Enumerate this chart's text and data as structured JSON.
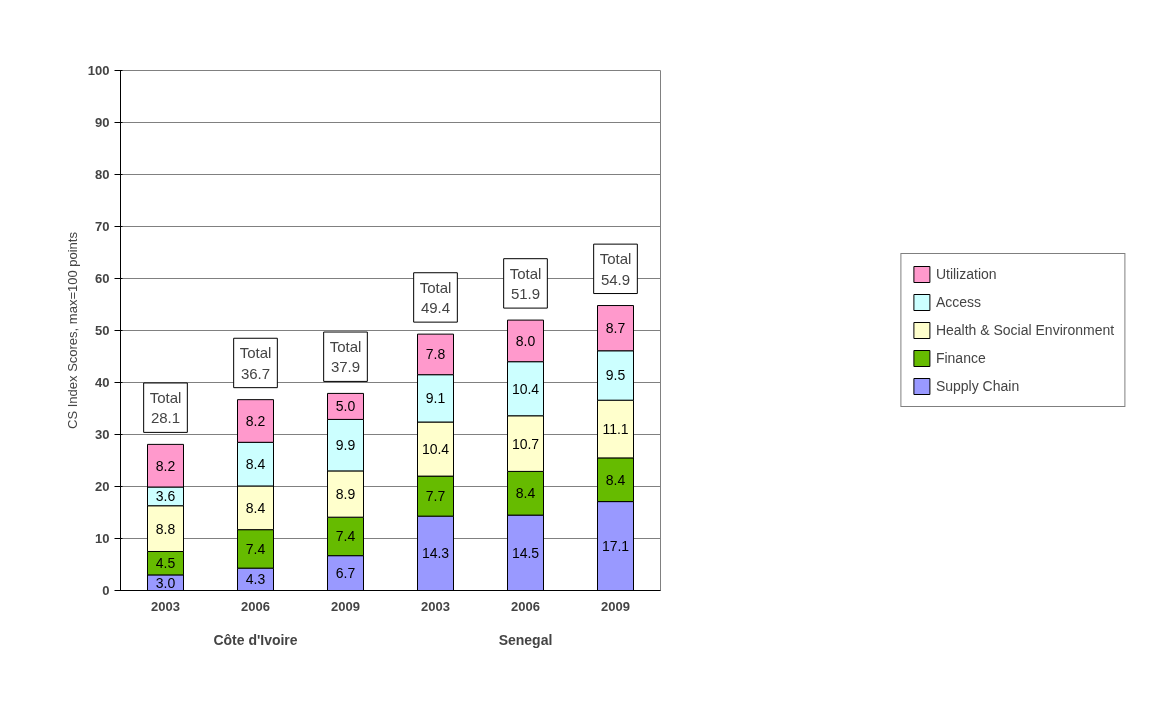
{
  "chart_data": {
    "type": "bar",
    "stacked": true,
    "ylabel": "CS Index Scores, max=100 points",
    "categories": [
      "2003",
      "2006",
      "2009",
      "2003",
      "2006",
      "2009"
    ],
    "series": [
      {
        "name": "Supply Chain",
        "color": "#9999ff",
        "values": [
          3.0,
          4.3,
          6.7,
          14.3,
          14.5,
          17.1
        ],
        "value_labels": [
          "3.0",
          "4.3",
          "6.7",
          "14.3",
          "14.5",
          "17.1"
        ]
      },
      {
        "name": "Finance",
        "color": "#66bb00",
        "values": [
          4.5,
          7.4,
          7.4,
          7.7,
          8.4,
          8.4
        ],
        "value_labels": [
          "4.5",
          "7.4",
          "7.4",
          "7.7",
          "8.4",
          "8.4"
        ]
      },
      {
        "name": "Health & Social Environment",
        "color": "#ffffcc",
        "values": [
          8.8,
          8.4,
          8.9,
          10.4,
          10.7,
          11.1
        ],
        "value_labels": [
          "8.8",
          "8.4",
          "8.9",
          "10.4",
          "10.7",
          "11.1"
        ]
      },
      {
        "name": "Access",
        "color": "#ccffff",
        "values": [
          3.6,
          8.4,
          9.9,
          9.1,
          10.4,
          9.5
        ],
        "value_labels": [
          "3.6",
          "8.4",
          "9.9",
          "9.1",
          "10.4",
          "9.5"
        ]
      },
      {
        "name": "Utilization",
        "color": "#ff99cc",
        "values": [
          8.2,
          8.2,
          5.0,
          7.8,
          8.0,
          8.7
        ],
        "value_labels": [
          "8.2",
          "8.2",
          "5.0",
          "7.8",
          "8.0",
          "8.7"
        ]
      }
    ],
    "totals": [
      "Total\n28.1",
      "Total\n36.7",
      "Total\n37.9",
      "Total\n49.4",
      "Total\n51.9",
      "Total\n54.9"
    ],
    "annotations": [
      "Côte d'Ivoire",
      "Senegal"
    ],
    "ylim": [
      0,
      100
    ],
    "yticks": [
      0,
      10,
      20,
      30,
      40,
      50,
      60,
      70,
      80,
      90,
      100
    ],
    "grid": "y",
    "legend": "right"
  }
}
